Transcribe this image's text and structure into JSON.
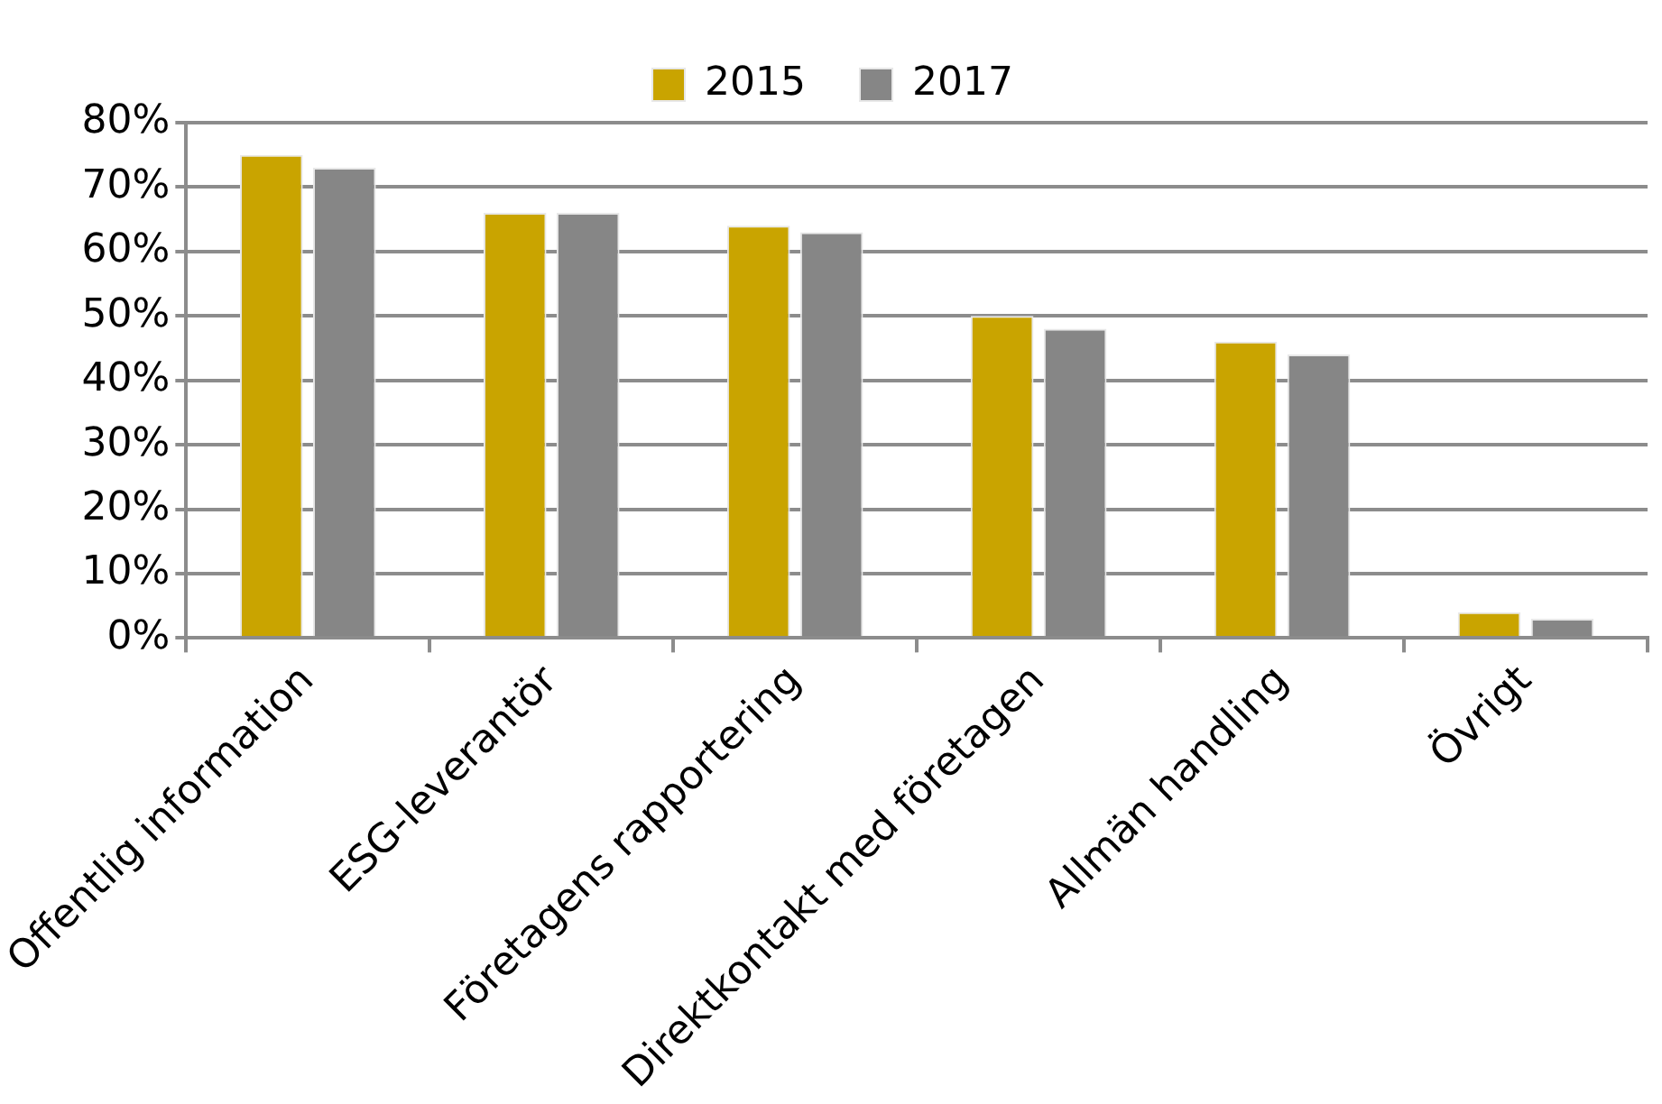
{
  "chart_data": {
    "type": "bar",
    "categories": [
      "Offentlig information",
      "ESG-leverantör",
      "Företagens rapportering",
      "Direktkontakt med företagen",
      "Allmän handling",
      "Övrigt"
    ],
    "series": [
      {
        "name": "2015",
        "color": "#c9a400",
        "values": [
          75,
          66,
          64,
          50,
          46,
          4
        ]
      },
      {
        "name": "2017",
        "color": "#868686",
        "values": [
          73,
          66,
          63,
          48,
          44,
          3
        ]
      }
    ],
    "ylim": [
      0,
      80
    ],
    "yticks": [
      {
        "value": 0,
        "label": "0%"
      },
      {
        "value": 10,
        "label": "10%"
      },
      {
        "value": 20,
        "label": "20%"
      },
      {
        "value": 30,
        "label": "30%"
      },
      {
        "value": 40,
        "label": "40%"
      },
      {
        "value": 50,
        "label": "50%"
      },
      {
        "value": 60,
        "label": "60%"
      },
      {
        "value": 70,
        "label": "70%"
      },
      {
        "value": 80,
        "label": "80%"
      }
    ],
    "grid": "y",
    "legend": "top"
  }
}
